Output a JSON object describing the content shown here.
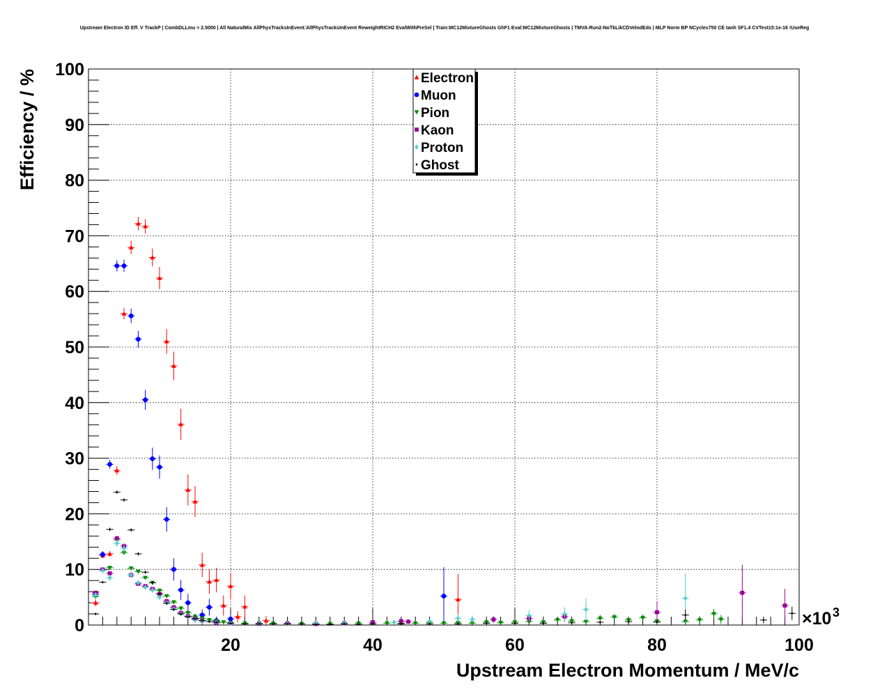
{
  "chart_data": {
    "type": "scatter",
    "title": "Upstream Electron ID Eff. V TrackP | CombDLLmu > 2.5000 | All NaturalMix AllPhysTracksInEvent:AllPhysTracksInEvent ReweightRICH2 EvalWithPreSel | Train:MC12MixtureGhosts GhF1 Eval:MC12MixtureGhosts | TMVA-Run2-NoTkLikCDVelodEdx | MLP Norm BP NCycles750 CE tanh SF1.4 CVTest15:1e-16 !UseReg",
    "xlabel": "Upstream Electron Momentum / MeV/c",
    "ylabel": "Efficiency / %",
    "x_multiplier": "×10",
    "x_multiplier_exp": "3",
    "xlim": [
      0,
      100
    ],
    "ylim": [
      0,
      100
    ],
    "xticks": [
      20,
      40,
      60,
      80,
      100
    ],
    "yticks": [
      0,
      10,
      20,
      30,
      40,
      50,
      60,
      70,
      80,
      90,
      100
    ],
    "grid": true,
    "legend_position": "top-center",
    "series": [
      {
        "name": "Electron",
        "color": "#ff0000",
        "marker": "triangle-up",
        "points": [
          [
            1,
            4,
            0.6
          ],
          [
            2,
            12.5,
            0.5
          ],
          [
            3,
            12.8,
            0.5
          ],
          [
            4,
            27.8,
            0.8
          ],
          [
            5,
            56,
            1.0
          ],
          [
            6,
            67.9,
            1.2
          ],
          [
            7,
            72.2,
            1.2
          ],
          [
            8,
            71.7,
            1.3
          ],
          [
            9,
            66.1,
            1.6
          ],
          [
            10,
            62.4,
            2.0
          ],
          [
            11,
            51,
            2.2
          ],
          [
            12,
            46.6,
            2.6
          ],
          [
            13,
            36.1,
            2.8
          ],
          [
            14,
            24.3,
            2.8
          ],
          [
            15,
            22.2,
            2.8
          ],
          [
            16,
            10.8,
            2.2
          ],
          [
            17,
            7.8,
            2.2
          ],
          [
            18,
            8.1,
            2.2
          ],
          [
            19,
            3.5,
            1.8
          ],
          [
            20,
            7,
            2.4
          ],
          [
            21,
            1.5,
            1.0
          ],
          [
            22,
            3.3,
            2.0
          ],
          [
            25,
            0.8,
            0.8
          ],
          [
            52,
            4.6,
            4.6
          ]
        ]
      },
      {
        "name": "Muon",
        "color": "#0000ff",
        "marker": "circle",
        "points": [
          [
            1,
            5.5,
            0.6
          ],
          [
            2,
            12.7,
            0.6
          ],
          [
            3,
            28.9,
            0.8
          ],
          [
            4,
            64.6,
            1.0
          ],
          [
            5,
            64.6,
            1.1
          ],
          [
            6,
            55.6,
            1.3
          ],
          [
            7,
            51.4,
            1.5
          ],
          [
            8,
            40.5,
            1.8
          ],
          [
            9,
            29.9,
            2.0
          ],
          [
            10,
            28.4,
            2.1
          ],
          [
            11,
            19,
            2.2
          ],
          [
            12,
            10,
            2.0
          ],
          [
            13,
            6.3,
            1.8
          ],
          [
            14,
            4,
            1.6
          ],
          [
            15,
            1.2,
            0.8
          ],
          [
            16,
            1.8,
            1.0
          ],
          [
            17,
            3.2,
            1.5
          ],
          [
            18,
            0.8,
            0.6
          ],
          [
            20,
            1.1,
            0.8
          ],
          [
            50,
            5.2,
            5.2
          ]
        ]
      },
      {
        "name": "Pion",
        "color": "#008800",
        "marker": "triangle-down",
        "points": [
          [
            1,
            5.1,
            0.3
          ],
          [
            2,
            9.8,
            0.3
          ],
          [
            3,
            10.3,
            0.3
          ],
          [
            4,
            15.3,
            0.3
          ],
          [
            5,
            13,
            0.3
          ],
          [
            6,
            10.2,
            0.3
          ],
          [
            7,
            9.6,
            0.3
          ],
          [
            8,
            8.5,
            0.3
          ],
          [
            9,
            7.6,
            0.3
          ],
          [
            10,
            6.2,
            0.3
          ],
          [
            11,
            5.2,
            0.3
          ],
          [
            12,
            4.1,
            0.3
          ],
          [
            13,
            3,
            0.3
          ],
          [
            14,
            2.2,
            0.3
          ],
          [
            15,
            1.5,
            0.3
          ],
          [
            16,
            1.2,
            0.3
          ],
          [
            17,
            0.9,
            0.2
          ],
          [
            18,
            0.7,
            0.2
          ],
          [
            19,
            0.5,
            0.2
          ],
          [
            20,
            0.4,
            0.2
          ],
          [
            22,
            0.3,
            0.2
          ],
          [
            24,
            0.3,
            0.2
          ],
          [
            26,
            0.3,
            0.2
          ],
          [
            28,
            0.2,
            0.2
          ],
          [
            30,
            0.2,
            0.2
          ],
          [
            32,
            0.2,
            0.2
          ],
          [
            34,
            0.2,
            0.2
          ],
          [
            36,
            0.2,
            0.2
          ],
          [
            38,
            0.3,
            0.2
          ],
          [
            40,
            0.2,
            0.2
          ],
          [
            42,
            0.3,
            0.2
          ],
          [
            44,
            0.3,
            0.2
          ],
          [
            46,
            0.3,
            0.2
          ],
          [
            48,
            0.4,
            0.2
          ],
          [
            50,
            0.3,
            0.2
          ],
          [
            52,
            0.4,
            0.2
          ],
          [
            54,
            0.3,
            0.2
          ],
          [
            56,
            0.5,
            0.3
          ],
          [
            58,
            0.4,
            0.3
          ],
          [
            60,
            0.5,
            0.3
          ],
          [
            62,
            0.6,
            0.3
          ],
          [
            64,
            0.5,
            0.3
          ],
          [
            66,
            0.9,
            0.4
          ],
          [
            68,
            0.7,
            0.4
          ],
          [
            70,
            0.6,
            0.4
          ],
          [
            72,
            1.2,
            0.6
          ],
          [
            74,
            1.4,
            0.6
          ],
          [
            76,
            0.9,
            0.5
          ],
          [
            78,
            1.3,
            0.6
          ],
          [
            80,
            0.7,
            0.6
          ],
          [
            84,
            0.6,
            0.6
          ],
          [
            86,
            0.9,
            0.7
          ],
          [
            88,
            2,
            0.9
          ],
          [
            89,
            1,
            0.8
          ]
        ]
      },
      {
        "name": "Kaon",
        "color": "#990099",
        "marker": "square",
        "points": [
          [
            1,
            5.8,
            0.3
          ],
          [
            2,
            10,
            0.4
          ],
          [
            3,
            9.3,
            0.4
          ],
          [
            4,
            15.6,
            0.4
          ],
          [
            5,
            14.2,
            0.5
          ],
          [
            6,
            9,
            0.4
          ],
          [
            7,
            7.4,
            0.3
          ],
          [
            8,
            7,
            0.3
          ],
          [
            9,
            6.5,
            0.3
          ],
          [
            10,
            5.6,
            0.3
          ],
          [
            11,
            4.3,
            0.3
          ],
          [
            12,
            3.2,
            0.3
          ],
          [
            13,
            2.2,
            0.3
          ],
          [
            14,
            1.6,
            0.3
          ],
          [
            15,
            1.1,
            0.3
          ],
          [
            16,
            0.8,
            0.2
          ],
          [
            18,
            0.4,
            0.2
          ],
          [
            20,
            0.3,
            0.2
          ],
          [
            24,
            0.2,
            0.2
          ],
          [
            28,
            0.3,
            0.2
          ],
          [
            32,
            0.2,
            0.2
          ],
          [
            36,
            0.3,
            0.2
          ],
          [
            40,
            0.5,
            0.3
          ],
          [
            44,
            0.7,
            0.4
          ],
          [
            45,
            0.6,
            0.4
          ],
          [
            57,
            1,
            0.6
          ],
          [
            62,
            1.2,
            0.8
          ],
          [
            67,
            1.5,
            0.9
          ],
          [
            80,
            2.3,
            2.0
          ],
          [
            92,
            5.8,
            5.0
          ],
          [
            98,
            3.5,
            3.0
          ]
        ]
      },
      {
        "name": "Proton",
        "color": "#55cccc",
        "marker": "diamond",
        "points": [
          [
            1,
            5.4,
            0.5
          ],
          [
            2,
            9.8,
            0.6
          ],
          [
            3,
            8.5,
            0.6
          ],
          [
            4,
            14.7,
            0.7
          ],
          [
            5,
            13.8,
            0.8
          ],
          [
            6,
            9,
            0.6
          ],
          [
            7,
            7.6,
            0.5
          ],
          [
            8,
            6.8,
            0.5
          ],
          [
            9,
            6.3,
            0.5
          ],
          [
            10,
            5,
            0.5
          ],
          [
            11,
            4,
            0.4
          ],
          [
            12,
            2.9,
            0.4
          ],
          [
            13,
            2,
            0.4
          ],
          [
            14,
            1.5,
            0.3
          ],
          [
            15,
            1,
            0.3
          ],
          [
            16,
            0.7,
            0.3
          ],
          [
            18,
            0.5,
            0.2
          ],
          [
            20,
            0.3,
            0.2
          ],
          [
            24,
            0.2,
            0.2
          ],
          [
            28,
            0.2,
            0.2
          ],
          [
            32,
            0.3,
            0.2
          ],
          [
            36,
            0.3,
            0.2
          ],
          [
            43,
            0.5,
            0.3
          ],
          [
            48,
            0.7,
            0.4
          ],
          [
            52,
            1.2,
            0.8
          ],
          [
            54,
            1,
            0.7
          ],
          [
            62,
            1.7,
            1.0
          ],
          [
            67,
            2,
            1.2
          ],
          [
            70,
            2.8,
            2.0
          ],
          [
            84,
            4.8,
            4.5
          ]
        ]
      },
      {
        "name": "Ghost",
        "color": "#000000",
        "marker": "small-diamond",
        "points": [
          [
            1,
            2,
            0.2
          ],
          [
            2,
            7.7,
            0.2
          ],
          [
            3,
            17.2,
            0.3
          ],
          [
            4,
            23.9,
            0.3
          ],
          [
            5,
            22.5,
            0.3
          ],
          [
            6,
            17.1,
            0.3
          ],
          [
            7,
            12.8,
            0.3
          ],
          [
            8,
            9.5,
            0.3
          ],
          [
            9,
            7.6,
            0.3
          ],
          [
            10,
            5.6,
            0.2
          ],
          [
            11,
            3.9,
            0.2
          ],
          [
            12,
            2.8,
            0.2
          ],
          [
            13,
            2,
            0.2
          ],
          [
            14,
            1.5,
            0.2
          ],
          [
            15,
            1.1,
            0.2
          ],
          [
            16,
            0.8,
            0.2
          ],
          [
            17,
            0.6,
            0.2
          ],
          [
            18,
            0.5,
            0.2
          ],
          [
            20,
            0.3,
            0.1
          ],
          [
            22,
            0.2,
            0.1
          ],
          [
            24,
            0.2,
            0.1
          ],
          [
            26,
            0.2,
            0.1
          ],
          [
            28,
            0.2,
            0.1
          ],
          [
            30,
            0.2,
            0.1
          ],
          [
            32,
            0.1,
            0.1
          ],
          [
            34,
            0.1,
            0.1
          ],
          [
            36,
            0.2,
            0.1
          ],
          [
            38,
            0.1,
            0.1
          ],
          [
            40,
            0.2,
            0.1
          ],
          [
            44,
            0.2,
            0.1
          ],
          [
            48,
            0.2,
            0.1
          ],
          [
            52,
            0.2,
            0.1
          ],
          [
            56,
            0.3,
            0.1
          ],
          [
            60,
            0.3,
            0.1
          ],
          [
            64,
            0.3,
            0.2
          ],
          [
            68,
            0.4,
            0.2
          ],
          [
            72,
            0.5,
            0.2
          ],
          [
            76,
            0.6,
            0.3
          ],
          [
            80,
            0.5,
            0.3
          ],
          [
            84,
            1.8,
            1.0
          ],
          [
            95,
            0.9,
            0.6
          ],
          [
            99,
            2.1,
            1.2
          ]
        ]
      }
    ]
  }
}
